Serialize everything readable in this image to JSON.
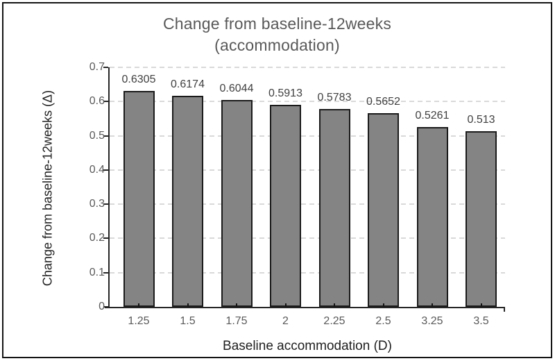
{
  "chart_data": {
    "type": "bar",
    "title_line1": "Change from baseline-12weeks",
    "title_line2": "(accommodation)",
    "categories": [
      "1.25",
      "1.5",
      "1.75",
      "2",
      "2.25",
      "2.5",
      "3.25",
      "3.5"
    ],
    "values": [
      0.6305,
      0.6174,
      0.6044,
      0.5913,
      0.5783,
      0.5652,
      0.5261,
      0.513
    ],
    "value_labels": [
      "0.6305",
      "0.6174",
      "0.6044",
      "0.5913",
      "0.5783",
      "0.5652",
      "0.5261",
      "0.513"
    ],
    "xlabel": "Baseline accommodation (D)",
    "ylabel": "Change from baseline-12weeks (Δ)",
    "ylim": [
      0,
      0.7
    ],
    "yticks": [
      "0.7",
      "0.6",
      "0.5",
      "0.4",
      "0.3",
      "0.2",
      "0.1",
      "0"
    ],
    "grid": "horizontal-dashed",
    "legend": "none",
    "colors": {
      "bar_fill": "#848484",
      "bar_border": "#1a1a1a",
      "gridline": "#d9d9d9",
      "axis_line": "#262626",
      "title_text": "#595959",
      "tick_label_text": "#595959",
      "value_label_text": "#404040",
      "axis_title_text": "#1f1f1f",
      "frame_border": "#141414"
    }
  }
}
